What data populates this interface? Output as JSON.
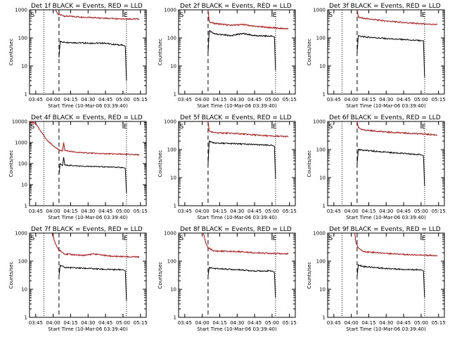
{
  "figure": {
    "ylabel": "Counts/sec",
    "xlabel": "Start Time (10-Mar-06 03:39:40)"
  },
  "colors": {
    "events": "#000000",
    "lld": "#cc0000",
    "frame": "#000000",
    "background": "#ffffff"
  },
  "chart_data": [
    {
      "type": "line",
      "title": "Det 1f BLACK = Events, RED = LLD",
      "xlabel": "Start Time (10-Mar-06 03:39:40)",
      "ylabel": "Counts/sec",
      "x_ticks": [
        "03:45",
        "04:00",
        "04:15",
        "04:30",
        "04:45",
        "05:00",
        "05:15"
      ],
      "xlim": [
        "03:39:40",
        "05:20"
      ],
      "y_scale": "log",
      "ylim": [
        1,
        1000
      ],
      "y_ticks": [
        "1",
        "10",
        "100",
        "1000"
      ],
      "markers": {
        "S": "03:40",
        "E": "05:00"
      },
      "dotted_lines": [
        "03:52",
        "05:03"
      ],
      "dashed_line": "04:05",
      "series": [
        {
          "color": "red",
          "points": [
            [
              "04:02",
              1000
            ],
            [
              "04:04",
              700
            ],
            [
              "04:10",
              600
            ],
            [
              "04:30",
              540
            ],
            [
              "04:50",
              500
            ],
            [
              "05:00",
              480
            ],
            [
              "05:14",
              470
            ]
          ]
        },
        {
          "color": "black",
          "points": [
            [
              "04:05",
              20
            ],
            [
              "04:06",
              75
            ],
            [
              "04:10",
              70
            ],
            [
              "04:30",
              65
            ],
            [
              "04:45",
              65
            ],
            [
              "04:50",
              60
            ],
            [
              "05:00",
              55
            ],
            [
              "05:02",
              50
            ],
            [
              "05:03",
              3
            ]
          ]
        }
      ]
    },
    {
      "type": "line",
      "title": "Det 2f BLACK = Events, RED = LLD",
      "xlabel": "Start Time (10-Mar-06 03:39:40)",
      "ylabel": "Counts/sec",
      "x_ticks": [
        "03:45",
        "04:00",
        "04:15",
        "04:30",
        "04:45",
        "05:00",
        "05:15"
      ],
      "xlim": [
        "03:39:40",
        "05:20"
      ],
      "y_scale": "log",
      "ylim": [
        1,
        1000
      ],
      "y_ticks": [
        "1",
        "10",
        "100",
        "1000"
      ],
      "markers": {
        "S": "03:40",
        "E": "05:00"
      },
      "dotted_lines": [
        "05:03"
      ],
      "dashed_line": "04:05",
      "series": [
        {
          "color": "red",
          "points": [
            [
              "04:05",
              1000
            ],
            [
              "04:06",
              380
            ],
            [
              "04:10",
              330
            ],
            [
              "04:25",
              280
            ],
            [
              "04:35",
              300
            ],
            [
              "04:45",
              260
            ],
            [
              "05:00",
              230
            ],
            [
              "05:14",
              210
            ]
          ]
        },
        {
          "color": "black",
          "points": [
            [
              "04:05",
              30
            ],
            [
              "04:06",
              180
            ],
            [
              "04:10",
              140
            ],
            [
              "04:25",
              120
            ],
            [
              "04:35",
              145
            ],
            [
              "04:45",
              120
            ],
            [
              "05:00",
              115
            ],
            [
              "05:02",
              110
            ],
            [
              "05:03",
              7
            ]
          ]
        }
      ]
    },
    {
      "type": "line",
      "title": "Det 3f BLACK = Events, RED = LLD",
      "xlabel": "Start Time (10-Mar-06 03:39:40)",
      "ylabel": "Counts/sec",
      "x_ticks": [
        "03:45",
        "04:00",
        "04:15",
        "04:30",
        "04:45",
        "05:00",
        "05:15"
      ],
      "xlim": [
        "03:39:40",
        "05:20"
      ],
      "y_scale": "log",
      "ylim": [
        1,
        1000
      ],
      "y_ticks": [
        "1",
        "10",
        "100",
        "1000"
      ],
      "markers": {
        "S": "03:40",
        "E": "05:00"
      },
      "dotted_lines": [
        "03:52",
        "05:03"
      ],
      "dashed_line": "04:05",
      "series": [
        {
          "color": "red",
          "points": [
            [
              "04:05",
              1000
            ],
            [
              "04:06",
              550
            ],
            [
              "04:10",
              500
            ],
            [
              "04:30",
              400
            ],
            [
              "04:50",
              340
            ],
            [
              "05:00",
              320
            ],
            [
              "05:14",
              300
            ]
          ]
        },
        {
          "color": "black",
          "points": [
            [
              "04:05",
              30
            ],
            [
              "04:06",
              120
            ],
            [
              "04:10",
              110
            ],
            [
              "04:30",
              95
            ],
            [
              "04:50",
              85
            ],
            [
              "05:00",
              80
            ],
            [
              "05:02",
              80
            ],
            [
              "05:03",
              4
            ]
          ]
        }
      ]
    },
    {
      "type": "line",
      "title": "Det 4f BLACK = Events, RED = LLD",
      "xlabel": "Start Time (10-Mar-06 03:39:40)",
      "ylabel": "Counts/sec",
      "x_ticks": [
        "03:45",
        "04:00",
        "04:15",
        "04:30",
        "04:45",
        "05:00",
        "05:15"
      ],
      "xlim": [
        "03:39:40",
        "05:20"
      ],
      "y_scale": "log",
      "ylim": [
        1,
        10000
      ],
      "y_ticks": [
        "1",
        "10",
        "100",
        "1000",
        "10000"
      ],
      "markers": {
        "S": "03:40",
        "E": "05:00"
      },
      "dotted_lines": [
        "03:52",
        "05:03"
      ],
      "dashed_line": "04:05",
      "series": [
        {
          "color": "red",
          "points": [
            [
              "03:40",
              10000
            ],
            [
              "03:45",
              8000
            ],
            [
              "03:50",
              3000
            ],
            [
              "03:55",
              1200
            ],
            [
              "04:00",
              700
            ],
            [
              "04:05",
              450
            ],
            [
              "04:08",
              400
            ],
            [
              "04:09",
              1000
            ],
            [
              "04:10",
              420
            ],
            [
              "04:20",
              340
            ],
            [
              "04:40",
              300
            ],
            [
              "05:00",
              280
            ],
            [
              "05:14",
              260
            ]
          ]
        },
        {
          "color": "black",
          "points": [
            [
              "04:05",
              30
            ],
            [
              "04:06",
              100
            ],
            [
              "04:08",
              80
            ],
            [
              "04:09",
              200
            ],
            [
              "04:10",
              85
            ],
            [
              "04:25",
              75
            ],
            [
              "04:45",
              70
            ],
            [
              "05:00",
              65
            ],
            [
              "05:02",
              60
            ],
            [
              "05:03",
              4
            ]
          ]
        }
      ]
    },
    {
      "type": "line",
      "title": "Det 5f BLACK = Events, RED = LLD",
      "xlabel": "Start Time (10-Mar-06 03:39:40)",
      "ylabel": "Counts/sec",
      "x_ticks": [
        "03:45",
        "04:00",
        "04:15",
        "04:30",
        "04:45",
        "05:00",
        "05:15"
      ],
      "xlim": [
        "03:39:40",
        "05:20"
      ],
      "y_scale": "log",
      "ylim": [
        1,
        1000
      ],
      "y_ticks": [
        "1",
        "10",
        "100",
        "1000"
      ],
      "markers": {
        "S": "03:40",
        "E": "05:00"
      },
      "dotted_lines": [
        "05:03"
      ],
      "dashed_line": "04:05",
      "series": [
        {
          "color": "red",
          "points": [
            [
              "04:05",
              1000
            ],
            [
              "04:06",
              450
            ],
            [
              "04:10",
              400
            ],
            [
              "04:30",
              370
            ],
            [
              "04:45",
              330
            ],
            [
              "05:00",
              300
            ],
            [
              "05:14",
              290
            ]
          ]
        },
        {
          "color": "black",
          "points": [
            [
              "04:05",
              30
            ],
            [
              "04:06",
              200
            ],
            [
              "04:10",
              170
            ],
            [
              "04:30",
              160
            ],
            [
              "04:45",
              150
            ],
            [
              "05:00",
              140
            ],
            [
              "05:02",
              130
            ],
            [
              "05:03",
              9
            ]
          ]
        }
      ]
    },
    {
      "type": "line",
      "title": "Det 6f BLACK = Events, RED = LLD",
      "xlabel": "Start Time (10-Mar-06 03:39:40)",
      "ylabel": "Counts/sec",
      "x_ticks": [
        "03:45",
        "04:00",
        "04:15",
        "04:30",
        "04:45",
        "05:00",
        "05:15"
      ],
      "xlim": [
        "03:39:40",
        "05:20"
      ],
      "y_scale": "log",
      "ylim": [
        1,
        1000
      ],
      "y_ticks": [
        "1",
        "10",
        "100",
        "1000"
      ],
      "markers": {
        "S": "03:40",
        "E": "05:00"
      },
      "dotted_lines": [
        "03:52",
        "05:03"
      ],
      "dashed_line": "04:05",
      "series": [
        {
          "color": "red",
          "points": [
            [
              "04:05",
              1000
            ],
            [
              "04:06",
              600
            ],
            [
              "04:10",
              500
            ],
            [
              "04:30",
              420
            ],
            [
              "04:50",
              380
            ],
            [
              "05:00",
              360
            ],
            [
              "05:14",
              330
            ]
          ]
        },
        {
          "color": "black",
          "points": [
            [
              "04:05",
              30
            ],
            [
              "04:06",
              100
            ],
            [
              "04:10",
              95
            ],
            [
              "04:30",
              80
            ],
            [
              "04:50",
              70
            ],
            [
              "05:00",
              65
            ],
            [
              "05:02",
              60
            ],
            [
              "05:03",
              5
            ]
          ]
        }
      ]
    },
    {
      "type": "line",
      "title": "Det 7f BLACK = Events, RED = LLD",
      "xlabel": "Start Time (10-Mar-06 03:39:40)",
      "ylabel": "Counts/sec",
      "x_ticks": [
        "03:45",
        "04:00",
        "04:15",
        "04:30",
        "04:45",
        "05:00",
        "05:15"
      ],
      "xlim": [
        "03:39:40",
        "05:20"
      ],
      "y_scale": "log",
      "ylim": [
        1,
        1000
      ],
      "y_ticks": [
        "1",
        "10",
        "100",
        "1000"
      ],
      "markers": {
        "S": "03:40",
        "E": "05:00"
      },
      "dotted_lines": [
        "03:52",
        "05:03"
      ],
      "dashed_line": "04:05",
      "series": [
        {
          "color": "red",
          "points": [
            [
              "03:59",
              1000
            ],
            [
              "04:02",
              400
            ],
            [
              "04:05",
              250
            ],
            [
              "04:10",
              180
            ],
            [
              "04:25",
              160
            ],
            [
              "04:35",
              180
            ],
            [
              "04:50",
              150
            ],
            [
              "05:00",
              145
            ],
            [
              "05:14",
              140
            ]
          ]
        },
        {
          "color": "black",
          "points": [
            [
              "04:05",
              30
            ],
            [
              "04:06",
              70
            ],
            [
              "04:10",
              60
            ],
            [
              "04:30",
              55
            ],
            [
              "04:50",
              50
            ],
            [
              "05:00",
              50
            ],
            [
              "05:02",
              45
            ],
            [
              "05:03",
              4
            ]
          ]
        }
      ]
    },
    {
      "type": "line",
      "title": "Det 8f BLACK = Events, RED = LLD",
      "xlabel": "Start Time (10-Mar-06 03:39:40)",
      "ylabel": "Counts/sec",
      "x_ticks": [
        "03:45",
        "04:00",
        "04:15",
        "04:30",
        "04:45",
        "05:00",
        "05:15"
      ],
      "xlim": [
        "03:39:40",
        "05:20"
      ],
      "y_scale": "log",
      "ylim": [
        1,
        1000
      ],
      "y_ticks": [
        "1",
        "10",
        "100",
        "1000"
      ],
      "markers": {
        "S": "03:40",
        "E": "05:00"
      },
      "dotted_lines": [
        "05:03"
      ],
      "dashed_line": "04:05",
      "series": [
        {
          "color": "red",
          "points": [
            [
              "04:01",
              1000
            ],
            [
              "04:03",
              450
            ],
            [
              "04:05",
              300
            ],
            [
              "04:10",
              230
            ],
            [
              "04:30",
              220
            ],
            [
              "04:45",
              200
            ],
            [
              "05:00",
              190
            ],
            [
              "05:14",
              185
            ]
          ]
        },
        {
          "color": "black",
          "points": [
            [
              "04:05",
              30
            ],
            [
              "04:06",
              60
            ],
            [
              "04:10",
              55
            ],
            [
              "04:30",
              50
            ],
            [
              "04:45",
              45
            ],
            [
              "05:00",
              45
            ],
            [
              "05:02",
              40
            ],
            [
              "05:03",
              5
            ]
          ]
        }
      ]
    },
    {
      "type": "line",
      "title": "Det 9f BLACK = Events, RED = LLD",
      "xlabel": "Start Time (10-Mar-06 03:39:40)",
      "ylabel": "Counts/sec",
      "x_ticks": [
        "03:45",
        "04:00",
        "04:15",
        "04:30",
        "04:45",
        "05:00",
        "05:15"
      ],
      "xlim": [
        "03:39:40",
        "05:20"
      ],
      "y_scale": "log",
      "ylim": [
        1,
        1000
      ],
      "y_ticks": [
        "1",
        "10",
        "100",
        "1000"
      ],
      "markers": {
        "S": "03:40",
        "E": "05:00"
      },
      "dotted_lines": [
        "03:52",
        "05:03"
      ],
      "dashed_line": "04:05",
      "series": [
        {
          "color": "red",
          "points": [
            [
              "04:03",
              1000
            ],
            [
              "04:04",
              450
            ],
            [
              "04:06",
              300
            ],
            [
              "04:10",
              220
            ],
            [
              "04:30",
              190
            ],
            [
              "04:50",
              170
            ],
            [
              "05:00",
              165
            ],
            [
              "05:14",
              160
            ]
          ]
        },
        {
          "color": "black",
          "points": [
            [
              "04:05",
              30
            ],
            [
              "04:06",
              75
            ],
            [
              "04:10",
              65
            ],
            [
              "04:30",
              55
            ],
            [
              "04:50",
              50
            ],
            [
              "05:00",
              50
            ],
            [
              "05:02",
              45
            ],
            [
              "05:03",
              5
            ]
          ]
        }
      ]
    }
  ]
}
